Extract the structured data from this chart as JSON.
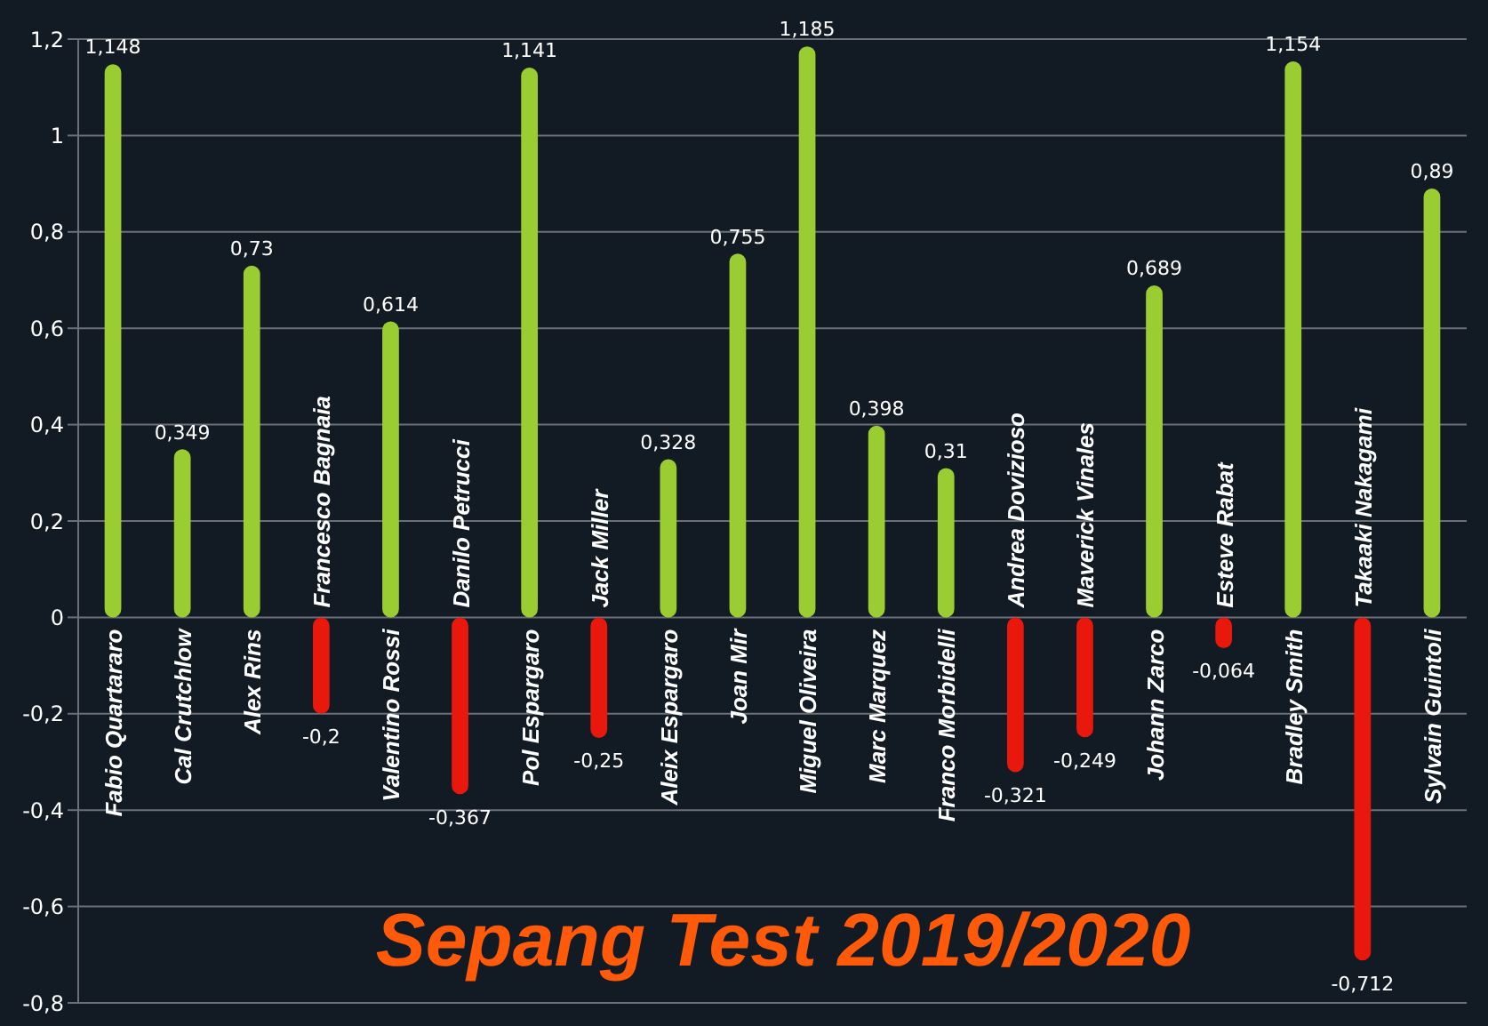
{
  "chart_data": {
    "type": "bar",
    "title": "Sepang Test 2019/2020",
    "categories": [
      "Fabio Quartararo",
      "Cal Crutchlow",
      "Alex Rins",
      "Francesco Bagnaia",
      "Valentino Rossi",
      "Danilo Petrucci",
      "Pol Espargaro",
      "Jack Miller",
      "Aleix Espargaro",
      "Joan Mir",
      "Miguel Oliveira",
      "Marc Marquez",
      "Franco Morbidelli",
      "Andrea Dovizioso",
      "Maverick Vinales",
      "Johann Zarco",
      "Esteve Rabat",
      "Bradley Smith",
      "Takaaki Nakagami",
      "Sylvain Guintoli"
    ],
    "values": [
      1.148,
      0.349,
      0.73,
      -0.2,
      0.614,
      -0.367,
      1.141,
      -0.25,
      0.328,
      0.755,
      1.185,
      0.398,
      0.31,
      -0.321,
      -0.249,
      0.689,
      -0.064,
      1.154,
      -0.712,
      0.89
    ],
    "value_labels": [
      "1,148",
      "0,349",
      "0,73",
      "-0,2",
      "0,614",
      "-0,367",
      "1,141",
      "-0,25",
      "0,328",
      "0,755",
      "1,185",
      "0,398",
      "0,31",
      "-0,321",
      "-0,249",
      "0,689",
      "-0,064",
      "1,154",
      "-0,712",
      "0,89"
    ],
    "colors": [
      "#9acd32",
      "#9acd32",
      "#9acd32",
      "#e8190c",
      "#9acd32",
      "#e8190c",
      "#9acd32",
      "#e8190c",
      "#9acd32",
      "#9acd32",
      "#9acd32",
      "#9acd32",
      "#9acd32",
      "#e8190c",
      "#e8190c",
      "#9acd32",
      "#e8190c",
      "#9acd32",
      "#e8190c",
      "#9acd32"
    ],
    "ylim": [
      -0.8,
      1.2
    ],
    "yticks": [
      {
        "value": -0.8,
        "label": "-0,8"
      },
      {
        "value": -0.6,
        "label": "-0,6"
      },
      {
        "value": -0.4,
        "label": "-0,4"
      },
      {
        "value": -0.2,
        "label": "-0,2"
      },
      0,
      {
        "value": 0.2,
        "label": "0,2"
      },
      {
        "value": 0.4,
        "label": "0,4"
      },
      {
        "value": 0.6,
        "label": "0,6"
      },
      {
        "value": 0.8,
        "label": "0,8"
      },
      1,
      {
        "value": 1.2,
        "label": "1,2"
      }
    ],
    "grid": "y"
  }
}
